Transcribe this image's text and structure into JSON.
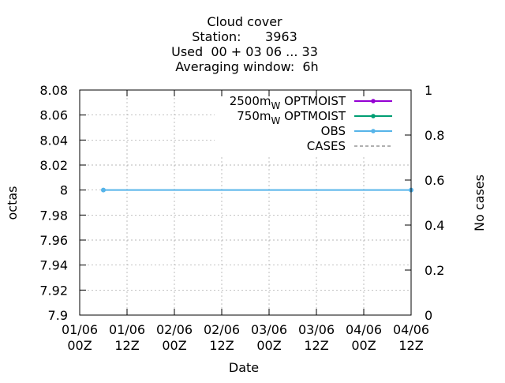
{
  "chart_data": {
    "type": "line",
    "title_lines": [
      "Cloud cover",
      "Station:      3963",
      "Used  00 + 03 06 ... 33",
      "Averaging window:  6h"
    ],
    "xlabel": "Date",
    "ylabel": "octas",
    "y2label": "No cases",
    "x_ticks": [
      {
        "line1": "01/06",
        "line2": "00Z",
        "hours": 0
      },
      {
        "line1": "01/06",
        "line2": "12Z",
        "hours": 12
      },
      {
        "line1": "02/06",
        "line2": "00Z",
        "hours": 24
      },
      {
        "line1": "02/06",
        "line2": "12Z",
        "hours": 36
      },
      {
        "line1": "03/06",
        "line2": "00Z",
        "hours": 48
      },
      {
        "line1": "03/06",
        "line2": "12Z",
        "hours": 60
      },
      {
        "line1": "04/06",
        "line2": "00Z",
        "hours": 72
      },
      {
        "line1": "04/06",
        "line2": "12Z",
        "hours": 84
      }
    ],
    "xlim_hours": [
      0,
      84
    ],
    "ylim": [
      7.9,
      8.08
    ],
    "y_ticks": [
      "7.9",
      "7.92",
      "7.94",
      "7.96",
      "7.98",
      "8",
      "8.02",
      "8.04",
      "8.06",
      "8.08"
    ],
    "y2lim": [
      0,
      1
    ],
    "y2_ticks": [
      "0",
      "0.2",
      "0.4",
      "0.6",
      "0.8",
      "1"
    ],
    "grid": true,
    "legend_position": "top-right",
    "legend": [
      {
        "name": "2500m",
        "sub": "W",
        "suffix": " OPTMOIST",
        "color": "#9400d3",
        "style": "line-points"
      },
      {
        "name": "750m",
        "sub": "W",
        "suffix": " OPTMOIST",
        "color": "#009e73",
        "style": "line-points"
      },
      {
        "name": "OBS",
        "sub": "",
        "suffix": "",
        "color": "#56b4e9",
        "style": "line-points"
      },
      {
        "name": "CASES",
        "sub": "",
        "suffix": "",
        "color": "#808080",
        "style": "dashed"
      }
    ],
    "series": [
      {
        "name": "OBS",
        "color": "#56b4e9",
        "points": [
          {
            "hours": 6,
            "y": 8
          },
          {
            "hours": 84,
            "y": 8
          }
        ]
      }
    ]
  }
}
